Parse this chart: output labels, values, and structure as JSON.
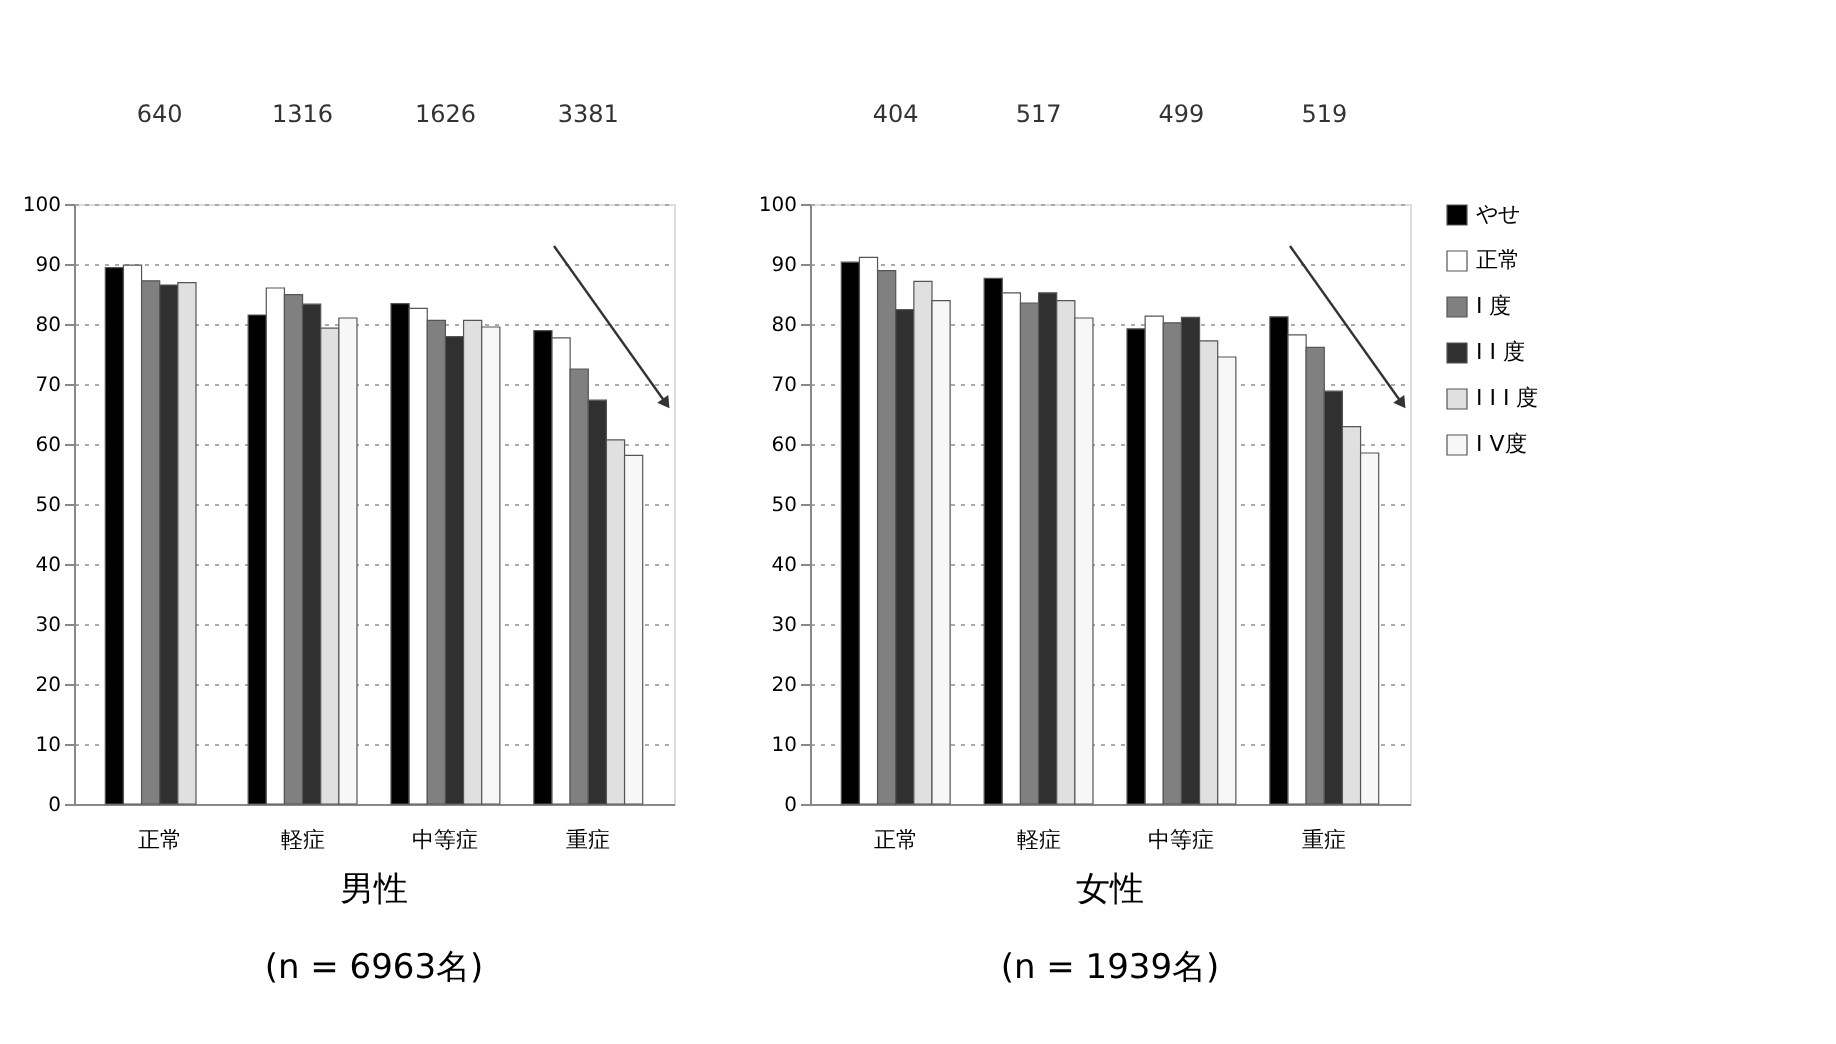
{
  "chart_data": [
    {
      "type": "bar",
      "title": "男性",
      "subtitle": "(n = 6963名)",
      "categories": [
        "正常",
        "軽症",
        "中等症",
        "重症"
      ],
      "ylim": [
        0,
        100
      ],
      "yticks": [
        0,
        10,
        20,
        30,
        40,
        50,
        60,
        70,
        80,
        90,
        100
      ],
      "grid": "y",
      "annotations": [
        "640",
        "1316",
        "1626",
        "3381"
      ],
      "series": [
        {
          "color": "#000000",
          "values": [
            89.4,
            81.5,
            83.4,
            78.9
          ]
        },
        {
          "color": "#ffffff",
          "values": [
            89.8,
            86.0,
            82.6,
            77.7
          ]
        },
        {
          "color": "#808080",
          "values": [
            87.2,
            84.9,
            80.6,
            72.5
          ]
        },
        {
          "color": "#303030",
          "values": [
            86.5,
            83.3,
            77.9,
            67.3
          ]
        },
        {
          "color": "#e0e0e0",
          "values": [
            86.9,
            79.3,
            80.6,
            60.7
          ]
        },
        {
          "color": "#f7f7f7",
          "values": [
            null,
            81.0,
            79.5,
            58.1
          ]
        }
      ]
    },
    {
      "type": "bar",
      "title": "女性",
      "subtitle": "(n = 1939名)",
      "categories": [
        "正常",
        "軽症",
        "中等症",
        "重症"
      ],
      "ylim": [
        0,
        100
      ],
      "yticks": [
        0,
        10,
        20,
        30,
        40,
        50,
        60,
        70,
        80,
        90,
        100
      ],
      "grid": "y",
      "legend": "right",
      "annotations": [
        "404",
        "517",
        "499",
        "519"
      ],
      "series": [
        {
          "name": "やせ",
          "color": "#000000",
          "values": [
            90.3,
            87.6,
            79.2,
            81.2
          ]
        },
        {
          "name": "正常",
          "color": "#ffffff",
          "values": [
            91.1,
            85.2,
            81.3,
            78.2
          ]
        },
        {
          "name": "I 度",
          "color": "#808080",
          "values": [
            88.9,
            83.5,
            80.2,
            76.1
          ]
        },
        {
          "name": "I I 度",
          "color": "#303030",
          "values": [
            82.4,
            85.2,
            81.1,
            68.8
          ]
        },
        {
          "name": "I I I 度",
          "color": "#e0e0e0",
          "values": [
            87.1,
            83.9,
            77.2,
            62.9
          ]
        },
        {
          "name": "I V度",
          "color": "#f7f7f7",
          "values": [
            83.9,
            81.0,
            74.5,
            58.5
          ]
        }
      ]
    }
  ]
}
